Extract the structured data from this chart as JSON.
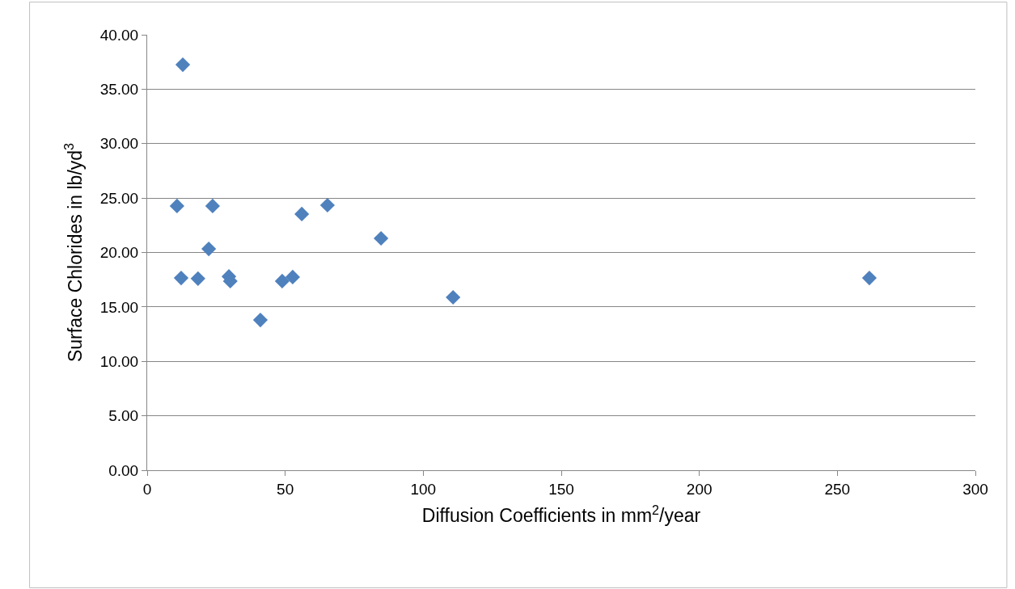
{
  "chart_data": {
    "type": "scatter",
    "xlabel": "Diffusion Coefficients in mm$^{2}$/year",
    "ylabel": "Surface Chlorides in lb/yd$^{3}$",
    "x": [
      10.8,
      12.9,
      12.3,
      17.8,
      18.4,
      22.3,
      22.9,
      23.7,
      29.6,
      30.1,
      41.0,
      48.9,
      52.7,
      56.0,
      65.3,
      84.7,
      110.8,
      261.6
    ],
    "series": [
      {
        "color": "#4f81bd",
        "values": [
          24.27,
          37.25,
          17.66,
          null,
          17.6,
          20.33,
          null,
          24.27,
          17.8,
          17.37,
          13.8,
          17.37,
          17.74,
          23.53,
          24.34,
          21.3,
          15.88,
          17.66
        ]
      }
    ],
    "xlim": [
      0,
      300
    ],
    "xticks": [
      0,
      50,
      100,
      150,
      200,
      250,
      300
    ],
    "ylim": [
      0,
      40
    ],
    "yticks": [
      {
        "value": 0,
        "label": "0.00"
      },
      {
        "value": 5,
        "label": "5.00"
      },
      {
        "value": 10,
        "label": "10.00"
      },
      {
        "value": 15,
        "label": "15.00"
      },
      {
        "value": 20,
        "label": "20.00"
      },
      {
        "value": 25,
        "label": "25.00"
      },
      {
        "value": 30,
        "label": "30.00"
      },
      {
        "value": 35,
        "label": "35.00"
      },
      {
        "value": 40,
        "label": "40.00"
      }
    ],
    "grid": "y",
    "marker": "diamond",
    "legend": false
  }
}
